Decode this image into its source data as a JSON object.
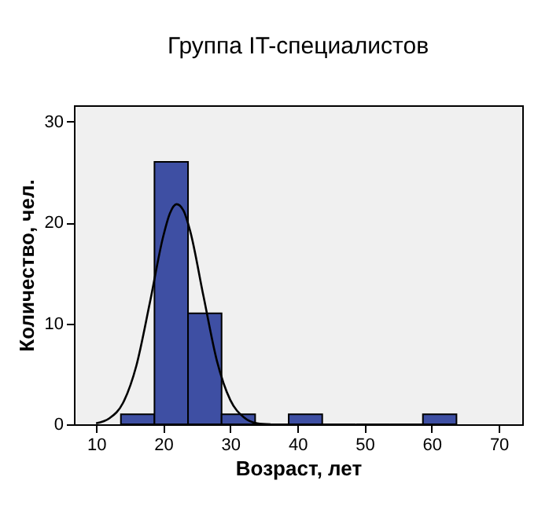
{
  "chart_data": {
    "type": "histogram",
    "title": "Группа IT-специалистов",
    "xlabel": "Возраст, лет",
    "ylabel": "Количество, чел.",
    "bins": [
      13.7,
      18.7,
      23.7,
      28.7,
      33.7,
      38.7,
      43.7,
      48.7,
      53.7,
      58.7,
      63.7
    ],
    "values": [
      1,
      26,
      11,
      1,
      0,
      1,
      0,
      0,
      0,
      1
    ],
    "color": "#3e4fa3",
    "series": [
      {
        "type": "line",
        "color": "#000000",
        "x": [
          10,
          12,
          14,
          16,
          18,
          20,
          21,
          22,
          23,
          24,
          26,
          28,
          30,
          32,
          34,
          36
        ],
        "values": [
          0.1,
          0.6,
          2.1,
          5.8,
          12.0,
          18.6,
          20.9,
          21.8,
          21.2,
          19.2,
          12.7,
          6.3,
          2.4,
          0.7,
          0.1,
          0
        ]
      }
    ],
    "xlim": [
      6.7,
      73.5
    ],
    "ylim": [
      0,
      31.6
    ],
    "xticks": [
      10,
      20,
      30,
      40,
      50,
      60,
      70
    ],
    "yticks": [
      0,
      10,
      20,
      30
    ],
    "grid": false
  }
}
